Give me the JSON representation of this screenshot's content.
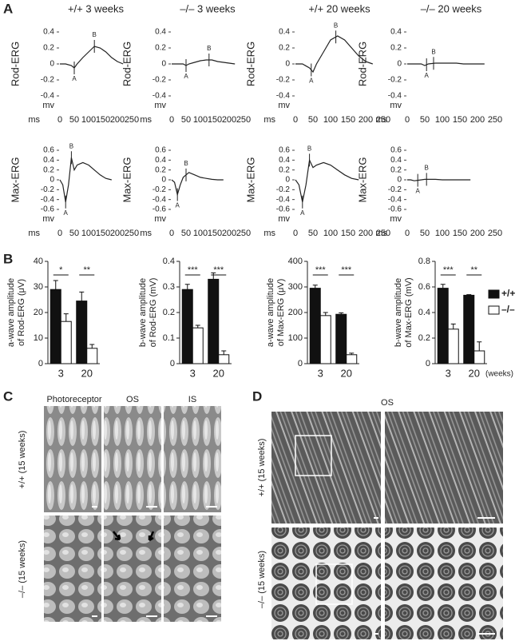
{
  "panel_labels": [
    "A",
    "B",
    "C",
    "D"
  ],
  "chart_data": [
    {
      "type": "line",
      "title": "+/+ 3 weeks",
      "ylabel": "Rod-ERG",
      "xlabel": "ms",
      "y_unit_label": "mv",
      "x": [
        0,
        20,
        40,
        50,
        60,
        80,
        100,
        120,
        140,
        160,
        180,
        200,
        220
      ],
      "series": [
        {
          "color": "#222222",
          "values": [
            0,
            0,
            -0.02,
            -0.05,
            0,
            0.08,
            0.15,
            0.22,
            0.2,
            0.15,
            0.08,
            0.03,
            0
          ]
        }
      ],
      "xlim": [
        0,
        250
      ],
      "xticks": [
        0,
        50,
        100,
        150,
        200,
        250
      ],
      "ylim": [
        -0.4,
        0.4
      ],
      "yticks": [
        -0.4,
        -0.2,
        0,
        0.2,
        0.4
      ],
      "markers": [
        {
          "label": "A",
          "x": 50
        },
        {
          "label": "B",
          "x": 120
        }
      ]
    },
    {
      "type": "line",
      "title": "–/– 3 weeks",
      "ylabel": "Rod-ERG",
      "xlabel": "ms",
      "y_unit_label": "mv",
      "x": [
        0,
        20,
        40,
        50,
        60,
        80,
        100,
        120,
        140,
        160,
        180,
        200,
        220
      ],
      "series": [
        {
          "color": "#222222",
          "values": [
            0,
            0,
            0,
            -0.02,
            0,
            0.02,
            0.04,
            0.05,
            0.05,
            0.03,
            0.02,
            0.01,
            0
          ]
        }
      ],
      "xlim": [
        0,
        250
      ],
      "xticks": [
        0,
        50,
        100,
        150,
        200,
        250
      ],
      "ylim": [
        -0.4,
        0.4
      ],
      "yticks": [
        -0.4,
        -0.2,
        0,
        0.2,
        0.4
      ],
      "markers": [
        {
          "label": "A",
          "x": 50
        },
        {
          "label": "B",
          "x": 130
        }
      ]
    },
    {
      "type": "line",
      "title": "+/+ 20 weeks",
      "ylabel": "Rod-ERG",
      "xlabel": "ms",
      "y_unit_label": "mv",
      "x": [
        0,
        20,
        40,
        50,
        60,
        80,
        100,
        120,
        140,
        160,
        180,
        200,
        220
      ],
      "series": [
        {
          "color": "#222222",
          "values": [
            0,
            0,
            -0.05,
            -0.1,
            0,
            0.15,
            0.3,
            0.35,
            0.3,
            0.2,
            0.1,
            0.03,
            0
          ]
        }
      ],
      "xlim": [
        0,
        250
      ],
      "xticks": [
        0,
        50,
        100,
        150,
        200,
        250
      ],
      "ylim": [
        -0.4,
        0.4
      ],
      "yticks": [
        -0.4,
        -0.2,
        0,
        0.2,
        0.4
      ],
      "markers": [
        {
          "label": "A",
          "x": 45
        },
        {
          "label": "B",
          "x": 115
        }
      ]
    },
    {
      "type": "line",
      "title": "–/– 20 weeks",
      "ylabel": "Rod-ERG",
      "xlabel": "ms",
      "y_unit_label": "mv",
      "x": [
        0,
        20,
        40,
        50,
        60,
        80,
        100,
        120,
        140,
        160,
        180,
        200,
        220
      ],
      "series": [
        {
          "color": "#222222",
          "values": [
            0,
            0,
            0,
            -0.02,
            0,
            0.01,
            0.01,
            0.01,
            0.01,
            0,
            0,
            0,
            0
          ]
        }
      ],
      "xlim": [
        0,
        250
      ],
      "xticks": [
        0,
        50,
        100,
        150,
        200,
        250
      ],
      "ylim": [
        -0.4,
        0.4
      ],
      "yticks": [
        -0.4,
        -0.2,
        0,
        0.2,
        0.4
      ],
      "markers": [
        {
          "label": "A",
          "x": 55
        },
        {
          "label": "B",
          "x": 75
        }
      ]
    },
    {
      "type": "line",
      "ylabel": "Max-ERG",
      "xlabel": "ms",
      "y_unit_label": "mv",
      "x": [
        0,
        10,
        20,
        30,
        40,
        50,
        60,
        80,
        100,
        120,
        140,
        160,
        180
      ],
      "series": [
        {
          "color": "#222222",
          "values": [
            0,
            -0.1,
            -0.45,
            -0.1,
            0.45,
            0.2,
            0.3,
            0.35,
            0.3,
            0.2,
            0.1,
            0.03,
            0
          ]
        }
      ],
      "xlim": [
        0,
        250
      ],
      "xticks": [
        0,
        50,
        100,
        150,
        200,
        250
      ],
      "ylim": [
        -0.6,
        0.6
      ],
      "yticks": [
        -0.6,
        -0.4,
        -0.2,
        0,
        0.2,
        0.4,
        0.6
      ],
      "markers": [
        {
          "label": "A",
          "x": 20
        },
        {
          "label": "B",
          "x": 40
        }
      ]
    },
    {
      "type": "line",
      "ylabel": "Max-ERG",
      "xlabel": "ms",
      "y_unit_label": "mv",
      "x": [
        0,
        10,
        20,
        30,
        40,
        50,
        60,
        80,
        100,
        120,
        140,
        160,
        180
      ],
      "series": [
        {
          "color": "#222222",
          "values": [
            0,
            -0.05,
            -0.3,
            -0.1,
            0.05,
            0.1,
            0.15,
            0.1,
            0.05,
            0.03,
            0.01,
            0,
            0
          ]
        }
      ],
      "xlim": [
        0,
        250
      ],
      "xticks": [
        0,
        50,
        100,
        150,
        200,
        250
      ],
      "ylim": [
        -0.6,
        0.6
      ],
      "yticks": [
        -0.6,
        -0.4,
        -0.2,
        0,
        0.2,
        0.4,
        0.6
      ],
      "markers": [
        {
          "label": "A",
          "x": 20
        },
        {
          "label": "B",
          "x": 50
        }
      ]
    },
    {
      "type": "line",
      "ylabel": "Max-ERG",
      "xlabel": "ms",
      "y_unit_label": "mv",
      "x": [
        0,
        10,
        20,
        30,
        40,
        50,
        60,
        80,
        100,
        120,
        140,
        160,
        180
      ],
      "series": [
        {
          "color": "#222222",
          "values": [
            0,
            -0.1,
            -0.45,
            -0.1,
            0.4,
            0.25,
            0.3,
            0.35,
            0.3,
            0.2,
            0.1,
            0.03,
            0
          ]
        }
      ],
      "xlim": [
        0,
        250
      ],
      "xticks": [
        0,
        50,
        100,
        150,
        200,
        250
      ],
      "ylim": [
        -0.6,
        0.6
      ],
      "yticks": [
        -0.6,
        -0.4,
        -0.2,
        0,
        0.2,
        0.4,
        0.6
      ],
      "markers": [
        {
          "label": "A",
          "x": 20
        },
        {
          "label": "B",
          "x": 40
        }
      ]
    },
    {
      "type": "line",
      "ylabel": "Max-ERG",
      "xlabel": "ms",
      "y_unit_label": "mv",
      "x": [
        0,
        10,
        20,
        30,
        40,
        50,
        60,
        80,
        100,
        120,
        140,
        160,
        180
      ],
      "series": [
        {
          "color": "#222222",
          "values": [
            0,
            0,
            -0.02,
            -0.01,
            0,
            0.01,
            0.01,
            0.01,
            0,
            0,
            0,
            0,
            0
          ]
        }
      ],
      "xlim": [
        0,
        250
      ],
      "xticks": [
        0,
        50,
        100,
        150,
        200,
        250
      ],
      "ylim": [
        -0.6,
        0.6
      ],
      "yticks": [
        -0.6,
        -0.4,
        -0.2,
        0,
        0.2,
        0.4,
        0.6
      ],
      "markers": [
        {
          "label": "A",
          "x": 30
        },
        {
          "label": "B",
          "x": 55
        }
      ]
    },
    {
      "type": "bar",
      "ylabel": [
        "a-wave amplitude",
        "of Rod-ERG (μV)"
      ],
      "categories": [
        "3",
        "20"
      ],
      "series": [
        {
          "color": "#111111",
          "values": [
            29,
            24.5
          ],
          "errors": [
            3.5,
            3.5
          ]
        },
        {
          "color": "#ffffff",
          "values": [
            16.5,
            6
          ],
          "errors": [
            3,
            1.5
          ]
        }
      ],
      "ylim": [
        0,
        40
      ],
      "yticks": [
        0,
        10,
        20,
        30,
        40
      ],
      "significance": [
        "*",
        "**"
      ]
    },
    {
      "type": "bar",
      "ylabel": [
        "b-wave amplitude",
        "of Rod-ERG (mV)"
      ],
      "categories": [
        "3",
        "20"
      ],
      "series": [
        {
          "color": "#111111",
          "values": [
            0.29,
            0.33
          ],
          "errors": [
            0.02,
            0.025
          ]
        },
        {
          "color": "#ffffff",
          "values": [
            0.14,
            0.035
          ],
          "errors": [
            0.01,
            0.015
          ]
        }
      ],
      "ylim": [
        0,
        0.4
      ],
      "yticks": [
        0,
        0.1,
        0.2,
        0.3,
        0.4
      ],
      "significance": [
        "***",
        "***"
      ]
    },
    {
      "type": "bar",
      "ylabel": [
        "a-wave amplitude",
        "of Max-ERG (μV)"
      ],
      "categories": [
        "3",
        "20"
      ],
      "series": [
        {
          "color": "#111111",
          "values": [
            295,
            193
          ],
          "errors": [
            12,
            6
          ]
        },
        {
          "color": "#ffffff",
          "values": [
            188,
            35
          ],
          "errors": [
            12,
            6
          ]
        }
      ],
      "ylim": [
        0,
        400
      ],
      "yticks": [
        0,
        100,
        200,
        300,
        400
      ],
      "significance": [
        "***",
        "***"
      ]
    },
    {
      "type": "bar",
      "ylabel": [
        "b-wave amplitude",
        "of Max-ERG (mV)"
      ],
      "categories": [
        "3",
        "20"
      ],
      "xlabel": "(weeks)",
      "series": [
        {
          "name": "+/+",
          "color": "#111111",
          "values": [
            0.59,
            0.535
          ],
          "errors": [
            0.03,
            0.005
          ]
        },
        {
          "name": "–/–",
          "color": "#ffffff",
          "values": [
            0.27,
            0.1
          ],
          "errors": [
            0.04,
            0.07
          ]
        }
      ],
      "ylim": [
        0,
        0.8
      ],
      "yticks": [
        0,
        0.2,
        0.4,
        0.6,
        0.8
      ],
      "significance": [
        "***",
        "**"
      ]
    }
  ],
  "panel_c": {
    "columns": [
      "Photoreceptor",
      "OS",
      "IS"
    ],
    "rows": [
      "+/+ (15 weeks)",
      "–/– (15 weeks)"
    ]
  },
  "panel_d": {
    "title": "OS",
    "rows": [
      "+/+ (15 weeks)",
      "–/– (15 weeks)"
    ]
  }
}
